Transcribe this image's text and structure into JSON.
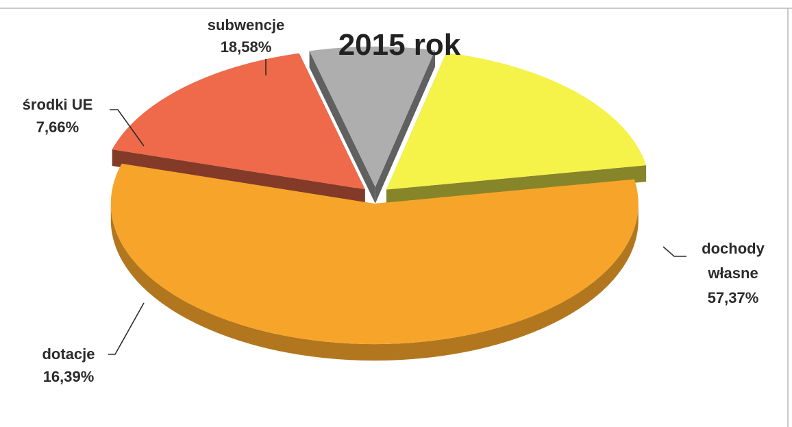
{
  "chart_data": {
    "type": "pie",
    "title": "2015 rok",
    "exploded": true,
    "three_d": true,
    "slices": [
      {
        "name": "dochody własne",
        "value": 57.37,
        "value_label": "57,37%",
        "color": "#f7a52a"
      },
      {
        "name": "dotacje",
        "value": 16.39,
        "value_label": "16,39%",
        "color": "#ee6a4b"
      },
      {
        "name": "środki UE",
        "value": 7.66,
        "value_label": "7,66%",
        "color": "#aeaeae"
      },
      {
        "name": "subwencje",
        "value": 18.58,
        "value_label": "18,58%",
        "color": "#f5f24a"
      }
    ],
    "label_lines": {
      "dochody_1": "dochody",
      "dochody_2": "własne",
      "dotacje_1": "dotacje",
      "srodki_1": "środki UE",
      "subwencje_1": "subwencje"
    }
  }
}
